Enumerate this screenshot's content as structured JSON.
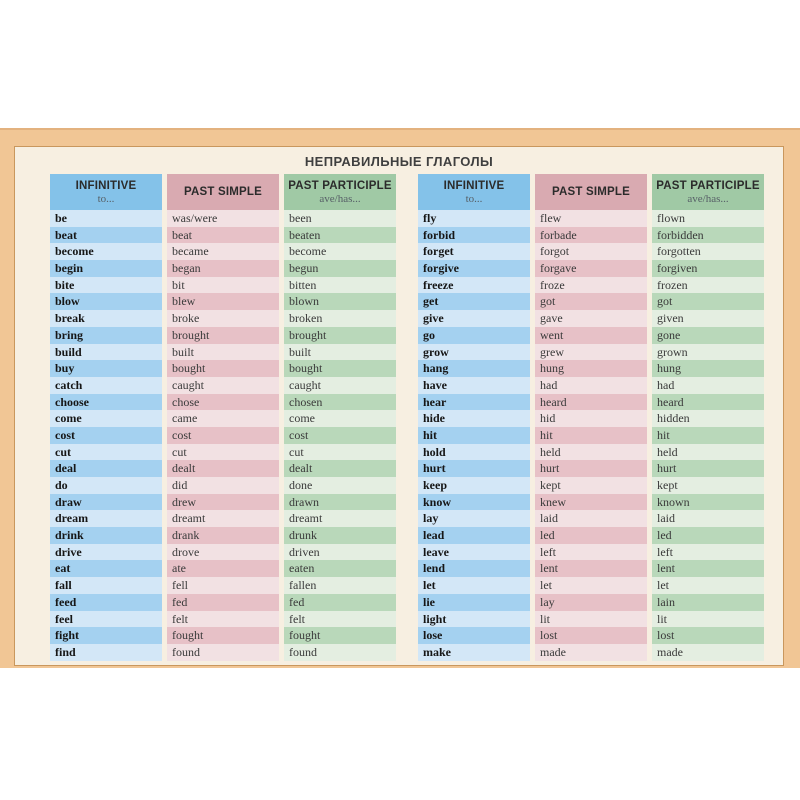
{
  "page": {
    "title": "НЕПРАВИЛЬНЫЕ ГЛАГОЛЫ"
  },
  "table": {
    "headers": {
      "infinitive": "INFINITIVE",
      "infinitive_sub": "to...",
      "past_simple": "PAST SIMPLE",
      "past_participle": "PAST PARTICIPLE",
      "participle_sub": "ave/has..."
    },
    "left_rows": [
      [
        "be",
        "was/were",
        "been"
      ],
      [
        "beat",
        "beat",
        "beaten"
      ],
      [
        "become",
        "became",
        "become"
      ],
      [
        "begin",
        "began",
        "begun"
      ],
      [
        "bite",
        "bit",
        "bitten"
      ],
      [
        "blow",
        "blew",
        "blown"
      ],
      [
        "break",
        "broke",
        "broken"
      ],
      [
        "bring",
        "brought",
        "brought"
      ],
      [
        "build",
        "built",
        "built"
      ],
      [
        "buy",
        "bought",
        "bought"
      ],
      [
        "catch",
        "caught",
        "caught"
      ],
      [
        "choose",
        "chose",
        "chosen"
      ],
      [
        "come",
        "came",
        "come"
      ],
      [
        "cost",
        "cost",
        "cost"
      ],
      [
        "cut",
        "cut",
        "cut"
      ],
      [
        "deal",
        "dealt",
        "dealt"
      ],
      [
        "do",
        "did",
        "done"
      ],
      [
        "draw",
        "drew",
        "drawn"
      ],
      [
        "dream",
        "dreamt",
        "dreamt"
      ],
      [
        "drink",
        "drank",
        "drunk"
      ],
      [
        "drive",
        "drove",
        "driven"
      ],
      [
        "eat",
        "ate",
        "eaten"
      ],
      [
        "fall",
        "fell",
        "fallen"
      ],
      [
        "feed",
        "fed",
        "fed"
      ],
      [
        "feel",
        "felt",
        "felt"
      ],
      [
        "fight",
        "fought",
        "fought"
      ],
      [
        "find",
        "found",
        "found"
      ]
    ],
    "right_rows": [
      [
        "fly",
        "flew",
        "flown"
      ],
      [
        "forbid",
        "forbade",
        "forbidden"
      ],
      [
        "forget",
        "forgot",
        "forgotten"
      ],
      [
        "forgive",
        "forgave",
        "forgiven"
      ],
      [
        "freeze",
        "froze",
        "frozen"
      ],
      [
        "get",
        "got",
        "got"
      ],
      [
        "give",
        "gave",
        "given"
      ],
      [
        "go",
        "went",
        "gone"
      ],
      [
        "grow",
        "grew",
        "grown"
      ],
      [
        "hang",
        "hung",
        "hung"
      ],
      [
        "have",
        "had",
        "had"
      ],
      [
        "hear",
        "heard",
        "heard"
      ],
      [
        "hide",
        "hid",
        "hidden"
      ],
      [
        "hit",
        "hit",
        "hit"
      ],
      [
        "hold",
        "held",
        "held"
      ],
      [
        "hurt",
        "hurt",
        "hurt"
      ],
      [
        "keep",
        "kept",
        "kept"
      ],
      [
        "know",
        "knew",
        "known"
      ],
      [
        "lay",
        "laid",
        "laid"
      ],
      [
        "lead",
        "led",
        "led"
      ],
      [
        "leave",
        "left",
        "left"
      ],
      [
        "lend",
        "lent",
        "lent"
      ],
      [
        "let",
        "let",
        "let"
      ],
      [
        "lie",
        "lay",
        "lain"
      ],
      [
        "light",
        "lit",
        "lit"
      ],
      [
        "lose",
        "lost",
        "lost"
      ],
      [
        "make",
        "made",
        "made"
      ]
    ]
  },
  "colors": {
    "tan": "#f1c695",
    "tan-line": "#c9975d",
    "tan-top-line": "#e3b27f",
    "cream": "#f7efe1",
    "title-color": "#3f3f3f",
    "blue-header": "#84c2e9",
    "pink-header": "#d9aab1",
    "green-header": "#a0c9a5",
    "blue-dark": "#a4d1f0",
    "blue-light": "#d3e7f7",
    "pink-dark": "#e7c1c7",
    "pink-light": "#f2e1e3",
    "green-dark": "#b9d8ba",
    "green-light": "#e4eee1"
  }
}
